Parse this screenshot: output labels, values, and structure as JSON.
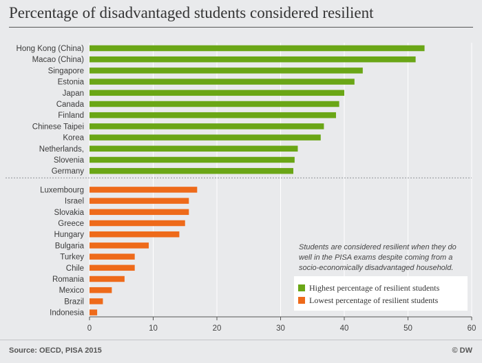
{
  "title": "Percentage of disadvantaged students considered resilient",
  "source": "Source: OECD, PISA 2015",
  "credit": "© DW",
  "note": "Students are considered resilient when they do well in the PISA exams despite coming from a socio-economically disadvantaged household.",
  "colors": {
    "high": "#6aa616",
    "low": "#ee6a1a",
    "background": "#e9eaec",
    "gridline": "#ffffff"
  },
  "chart_data": {
    "type": "bar",
    "orientation": "horizontal",
    "xlim": [
      0,
      60
    ],
    "x_ticks": [
      0,
      10,
      20,
      30,
      40,
      50,
      60
    ],
    "grid": true,
    "legend": "bottom-right",
    "series": [
      {
        "name": "Highest percentage of resilient students",
        "color": "#6aa616",
        "categories": [
          "Hong Kong (China)",
          "Macao (China)",
          "Singapore",
          "Estonia",
          "Japan",
          "Canada",
          "Finland",
          "Chinese Taipei",
          "Korea",
          "Netherlands,",
          "Slovenia",
          "Germany"
        ],
        "values": [
          52.6,
          51.2,
          42.9,
          41.6,
          40.0,
          39.2,
          38.7,
          36.8,
          36.3,
          32.7,
          32.2,
          32.0
        ]
      },
      {
        "name": "Lowest percentage of resilient students",
        "color": "#ee6a1a",
        "categories": [
          "Luxembourg",
          "Israel",
          "Slovakia",
          "Greece",
          "Hungary",
          "Bulgaria",
          "Turkey",
          "Chile",
          "Romania",
          "Mexico",
          "Brazil",
          "Indonesia"
        ],
        "values": [
          16.9,
          15.6,
          15.6,
          15.0,
          14.1,
          9.3,
          7.1,
          7.1,
          5.5,
          3.5,
          2.1,
          1.2
        ]
      }
    ]
  }
}
